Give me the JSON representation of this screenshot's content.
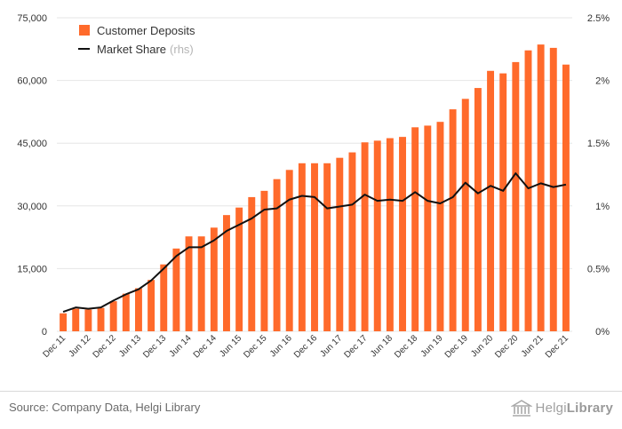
{
  "chart_data": {
    "type": "bar",
    "legend_position": "top-left",
    "grid": true,
    "colors": {
      "bar": "#ff6a2b",
      "line": "#111111",
      "grid": "#e6e6e6",
      "tick": "#333333",
      "rhs_note": "#b5b5b5"
    },
    "x_tick_labels": [
      "Dec 11",
      "Jun 12",
      "Dec 12",
      "Jun 13",
      "Dec 13",
      "Jun 14",
      "Dec 14",
      "Jun 15",
      "Dec 15",
      "Jun 16",
      "Dec 16",
      "Jun 17",
      "Dec 17",
      "Jun 18",
      "Dec 18",
      "Jun 19",
      "Dec 19",
      "Jun 20",
      "Dec 20",
      "Jun 21",
      "Dec 21"
    ],
    "y_left": {
      "ylim": [
        0,
        75000
      ],
      "ticks": [
        "0",
        "15,000",
        "30,000",
        "45,000",
        "60,000",
        "75,000"
      ]
    },
    "y_right": {
      "ylim": [
        0,
        2.5
      ],
      "ticks": [
        "0%",
        "0.5%",
        "1%",
        "1.5%",
        "2%",
        "2.5%"
      ]
    },
    "series": [
      {
        "name": "Customer Deposits",
        "type": "bar",
        "axis": "left",
        "values": [
          4300,
          5400,
          5200,
          5600,
          7200,
          9000,
          10300,
          12300,
          16000,
          19800,
          22700,
          22700,
          24800,
          27800,
          29600,
          32100,
          33600,
          36400,
          38600,
          40200,
          40200,
          40200,
          41500,
          42800,
          45200,
          45600,
          46200,
          46500,
          48800,
          49200,
          50100,
          53100,
          55600,
          58200,
          62300,
          61700,
          64400,
          67200,
          68600,
          67800,
          63800
        ]
      },
      {
        "name": "Market Share",
        "rhs_note": "(rhs)",
        "type": "line",
        "axis": "right",
        "values": [
          0.155,
          0.19,
          0.18,
          0.19,
          0.245,
          0.295,
          0.335,
          0.405,
          0.5,
          0.6,
          0.67,
          0.67,
          0.725,
          0.8,
          0.85,
          0.9,
          0.97,
          0.98,
          1.05,
          1.08,
          1.07,
          0.98,
          0.995,
          1.01,
          1.09,
          1.04,
          1.05,
          1.04,
          1.11,
          1.04,
          1.02,
          1.07,
          1.185,
          1.1,
          1.16,
          1.12,
          1.26,
          1.14,
          1.18,
          1.15,
          1.17
        ]
      }
    ]
  },
  "footer": {
    "source": "Source: Company Data, Helgi Library",
    "logo_regular": "Helgi",
    "logo_bold": "Library"
  }
}
